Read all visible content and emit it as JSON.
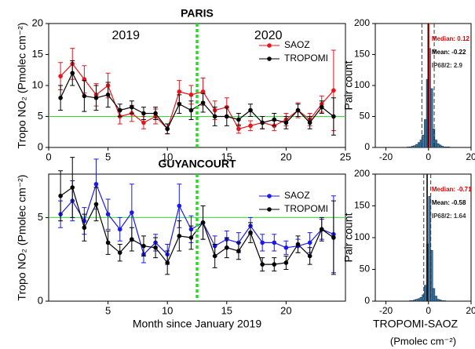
{
  "chart_data": [
    {
      "type": "line",
      "title": "PARIS",
      "ylabel": "Tropo NO₂ (Pmolec cm⁻²)",
      "xlim": [
        0,
        25
      ],
      "xticks": [
        0,
        5,
        10,
        15,
        20,
        25
      ],
      "ylim": [
        0,
        20
      ],
      "yticks": [
        0,
        5,
        10,
        15,
        20
      ],
      "hline": 5,
      "hline_color": "#33dd33",
      "vline": 12.5,
      "vline_color": "#22dd22",
      "annotations": [
        "2019",
        "2020"
      ],
      "legend": "upper right",
      "x": [
        1,
        2,
        3,
        4,
        5,
        6,
        7,
        8,
        9,
        10,
        11,
        12,
        13,
        14,
        15,
        16,
        17,
        18,
        19,
        20,
        21,
        22,
        23,
        24
      ],
      "series": [
        {
          "name": "SAOZ",
          "color": "#e8141c",
          "values": [
            11.5,
            13.5,
            11,
            8.5,
            10,
            5,
            5.5,
            4,
            5,
            3,
            9,
            8.5,
            9,
            6,
            6.5,
            3,
            3.5,
            4,
            3.5,
            4.5,
            6,
            4.5,
            7,
            9.2
          ],
          "errors": [
            2.2,
            2.5,
            2.2,
            1.8,
            2,
            1.2,
            1.3,
            1,
            1.2,
            0.8,
            1.8,
            1.5,
            2.2,
            1.5,
            1.5,
            0.7,
            0.8,
            1,
            0.8,
            1,
            1.2,
            1,
            1.3,
            6.5
          ]
        },
        {
          "name": "TROPOMI",
          "color": "#000000",
          "values": [
            8,
            12,
            8.3,
            8,
            8.5,
            6,
            6.5,
            5.5,
            5.5,
            3,
            7,
            6,
            7.2,
            5,
            5,
            4.5,
            6,
            4,
            4.5,
            4,
            6,
            4,
            6.5,
            5
          ],
          "errors": [
            2,
            2,
            2.5,
            2,
            2,
            1,
            1,
            1,
            1,
            0.8,
            1.5,
            1.5,
            1.5,
            1.5,
            1.5,
            1,
            1,
            1,
            1,
            1,
            1,
            1,
            1,
            3
          ]
        }
      ]
    },
    {
      "type": "line",
      "title": "GUYANCOURT",
      "ylabel": "Tropo NO₂ (Pmolec cm⁻²)",
      "xlabel": "Month since January 2019",
      "xlim": [
        0,
        25
      ],
      "xticks": [
        5,
        10,
        15,
        20
      ],
      "ylim": [
        0,
        7.6
      ],
      "yticks": [
        0,
        5
      ],
      "hline": 5,
      "hline_color": "#33dd33",
      "vline": 12.5,
      "vline_color": "#22dd22",
      "legend": "upper right",
      "x": [
        1,
        2,
        3,
        4,
        5,
        6,
        7,
        8,
        9,
        10,
        11,
        12,
        13,
        14,
        15,
        16,
        17,
        18,
        19,
        20,
        21,
        22,
        23,
        24
      ],
      "series": [
        {
          "name": "SAOZ",
          "color": "#1a1aee",
          "values": [
            5.2,
            6,
            4.8,
            7,
            5.2,
            4.3,
            5.3,
            2.8,
            3.5,
            2.8,
            5.7,
            4.3,
            4.7,
            3.3,
            3.7,
            3.5,
            4.5,
            3.5,
            3.5,
            3.2,
            3.3,
            3.5,
            4.3,
            4
          ],
          "errors": [
            0.8,
            1.2,
            0.8,
            1.5,
            0.9,
            0.7,
            1.7,
            0.5,
            0.5,
            0.6,
            1.3,
            0.8,
            1,
            0.6,
            0.5,
            0.6,
            0.5,
            0.5,
            0.5,
            0.4,
            0.4,
            0.6,
            0.6,
            2.3
          ]
        },
        {
          "name": "TROPOMI",
          "color": "#000000",
          "values": [
            6.3,
            6.8,
            4.4,
            5.8,
            3.5,
            2.9,
            3.7,
            3.3,
            3.2,
            2.3,
            3.9,
            3.8,
            4.7,
            2.7,
            3.2,
            3,
            4.1,
            2.2,
            2.2,
            2.3,
            3.4,
            2.7,
            4.3,
            3.8
          ],
          "errors": [
            1.5,
            1.8,
            0.8,
            1,
            0.7,
            0.5,
            0.7,
            0.6,
            0.6,
            0.7,
            0.9,
            0.7,
            1,
            0.7,
            0.6,
            0.5,
            0.6,
            0.4,
            0.4,
            0.4,
            0.5,
            0.5,
            0.7,
            2.2
          ]
        }
      ]
    },
    {
      "type": "histogram",
      "ylabel": "Pair count",
      "xlim": [
        -25,
        20
      ],
      "xticks": [
        -20,
        0,
        20
      ],
      "ylim": [
        0,
        200
      ],
      "yticks": [
        0,
        50,
        100,
        150,
        200
      ],
      "bins": [
        -10,
        -9,
        -8,
        -7,
        -6,
        -5,
        -4,
        -3,
        -2,
        -1,
        0,
        1,
        2,
        3,
        4,
        5,
        6,
        7,
        8,
        9,
        10
      ],
      "counts": [
        1,
        1,
        2,
        3,
        5,
        8,
        12,
        20,
        45,
        110,
        160,
        95,
        30,
        12,
        6,
        4,
        2,
        1,
        1,
        1
      ],
      "color": "#3a78a8",
      "stats": [
        {
          "name": "Median",
          "value": 0.12,
          "label": "Median: 0.12",
          "color": "#e00000"
        },
        {
          "name": "Mean",
          "value": -0.22,
          "label": "Mean: -0.22",
          "color": "#000000"
        },
        {
          "name": "IP68/2",
          "value": 2.9,
          "label": "IP68/2: 2.9",
          "color": "#333333"
        }
      ]
    },
    {
      "type": "histogram",
      "ylabel": "Pair count",
      "xlabel": "TROPOMI-SAOZ",
      "xlabel2": "(Pmolec cm⁻²)",
      "xlim": [
        -25,
        20
      ],
      "xticks": [
        -20,
        0,
        20
      ],
      "ylim": [
        0,
        200
      ],
      "yticks": [
        0,
        50,
        100,
        150,
        200
      ],
      "bins": [
        -10,
        -9,
        -8,
        -7,
        -6,
        -5,
        -4,
        -3,
        -2,
        -1,
        0,
        1,
        2,
        3,
        4,
        5,
        6,
        7,
        8,
        9,
        10
      ],
      "counts": [
        0,
        1,
        1,
        2,
        3,
        4,
        6,
        10,
        25,
        90,
        165,
        80,
        20,
        8,
        3,
        2,
        1,
        1,
        0,
        0
      ],
      "color": "#3a78a8",
      "stats": [
        {
          "name": "Median",
          "value": -0.71,
          "label": "Median: -0.71",
          "color": "#e00000"
        },
        {
          "name": "Mean",
          "value": -0.58,
          "label": "Mean: -0.58",
          "color": "#000000"
        },
        {
          "name": "IP68/2",
          "value": 1.64,
          "label": "IP68/2: 1.64",
          "color": "#333333"
        }
      ]
    }
  ]
}
